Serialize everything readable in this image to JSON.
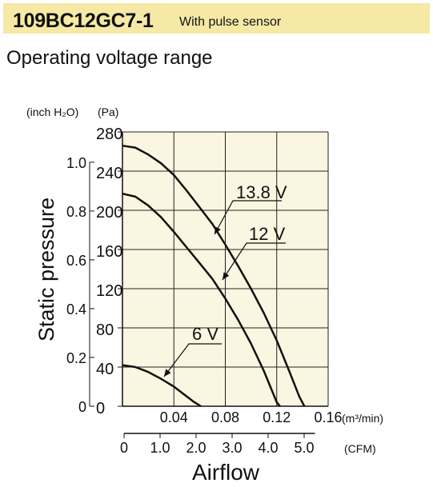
{
  "header": {
    "model": "109BC12GC7-1",
    "subtitle": "With pulse sensor"
  },
  "section_title": "Operating voltage range",
  "chart_data": {
    "type": "line",
    "title": "Operating voltage range",
    "xlabel": "Airflow",
    "ylabel": "Static pressure",
    "x_unit": "(m³/min)",
    "x2_unit": "(CFM)",
    "y_unit_pa": "(Pa)",
    "y_unit_inch": "(inch H₂O)",
    "xlim": [
      0,
      0.16
    ],
    "ylim": [
      0,
      280
    ],
    "x_ticks": [
      "0.04",
      "0.08",
      "0.12",
      "0.16"
    ],
    "x_tick_values": [
      0.04,
      0.08,
      0.12,
      0.16
    ],
    "x2_ticks": [
      "0",
      "1.0",
      "2.0",
      "3.0",
      "4.0",
      "5.0"
    ],
    "x2_tick_values": [
      0,
      1,
      2,
      3,
      4,
      5
    ],
    "y_ticks_pa": [
      "0",
      "40",
      "80",
      "120",
      "160",
      "200",
      "240",
      "280"
    ],
    "y_tick_values_pa": [
      0,
      40,
      80,
      120,
      160,
      200,
      240,
      280
    ],
    "y_ticks_inch": [
      "0",
      "0.2",
      "0.4",
      "0.6",
      "0.8",
      "1.0"
    ],
    "y_tick_values_inch": [
      0,
      0.2,
      0.4,
      0.6,
      0.8,
      1.0
    ],
    "grid": true,
    "plot_background": "#fbf6e1",
    "series": [
      {
        "name": "13.8 V",
        "x": [
          0,
          0.01,
          0.02,
          0.03,
          0.04,
          0.05,
          0.06,
          0.07,
          0.08,
          0.09,
          0.1,
          0.11,
          0.12,
          0.13,
          0.1375,
          0.1415
        ],
        "y": [
          266,
          264,
          257,
          248,
          236,
          220,
          203,
          186,
          165,
          143,
          120,
          95,
          67,
          35,
          10,
          0
        ]
      },
      {
        "name": "12 V",
        "x": [
          0,
          0.01,
          0.02,
          0.03,
          0.04,
          0.05,
          0.06,
          0.07,
          0.08,
          0.09,
          0.1,
          0.11,
          0.12,
          0.1225
        ],
        "y": [
          217,
          214,
          205,
          193,
          178,
          162,
          146,
          130,
          110,
          88,
          64,
          36,
          4,
          0
        ]
      },
      {
        "name": "6 V",
        "x": [
          0,
          0.01,
          0.02,
          0.03,
          0.04,
          0.05,
          0.055,
          0.061
        ],
        "y": [
          42,
          40,
          35,
          28,
          20,
          10,
          5,
          0
        ]
      }
    ],
    "colors": {
      "curve": "#111111",
      "grid": "#222222"
    }
  }
}
